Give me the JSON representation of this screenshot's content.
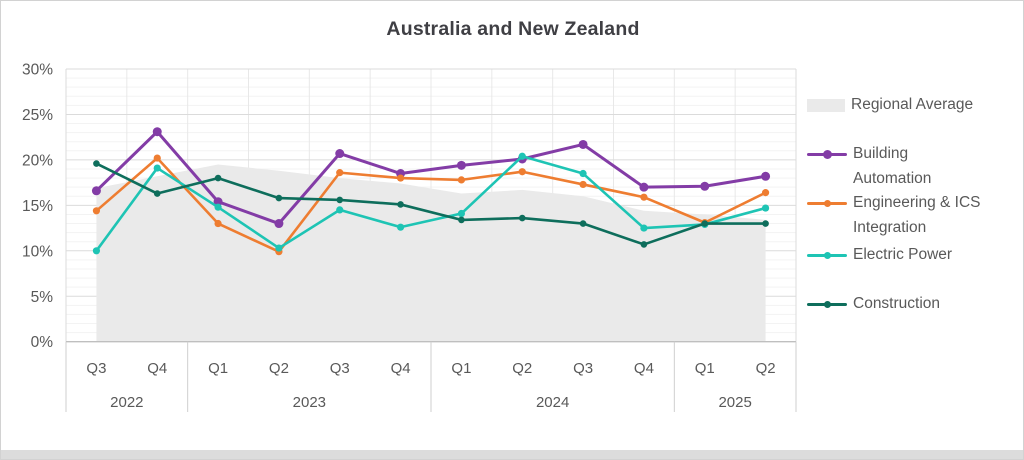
{
  "title": "Australia and New Zealand",
  "colors": {
    "regional_average": "#eaeaea",
    "building_automation": "#833ca6",
    "engineering_ics": "#ee7d31",
    "electric_power": "#1ec4b4",
    "construction": "#0e6e5c",
    "axis_text": "#595959",
    "title_text": "#3f3f44",
    "major_grid": "#dbdbdb",
    "minor_grid": "#f3f3f3",
    "vertical_grid": "#e8e8e8",
    "axis_line": "#bfbfbf",
    "separator_line": "#cfcfcf"
  },
  "legend": {
    "items": [
      {
        "lines": [
          "Regional Average"
        ],
        "type": "area",
        "color": "#eaeaea"
      },
      {
        "lines": [
          "Building",
          "Automation"
        ],
        "type": "line",
        "color": "#833ca6",
        "dot": "large"
      },
      {
        "lines": [
          "Engineering & ICS",
          "Integration"
        ],
        "type": "line",
        "color": "#ee7d31",
        "dot": "small"
      },
      {
        "lines": [
          "Electric Power"
        ],
        "type": "line",
        "color": "#1ec4b4",
        "dot": "small"
      },
      {
        "lines": [
          "Construction"
        ],
        "type": "line",
        "color": "#0e6e5c",
        "dot": "small"
      }
    ]
  },
  "chart_data": {
    "type": "line",
    "title": "Australia and New Zealand",
    "categories": [
      "Q3",
      "Q4",
      "Q1",
      "Q2",
      "Q3",
      "Q4",
      "Q1",
      "Q2",
      "Q3",
      "Q4",
      "Q1",
      "Q2"
    ],
    "year_groups": [
      {
        "year": "2022",
        "quarters": 2
      },
      {
        "year": "2023",
        "quarters": 4
      },
      {
        "year": "2024",
        "quarters": 4
      },
      {
        "year": "2025",
        "quarters": 2
      }
    ],
    "y_axis": {
      "min": 0,
      "max": 30,
      "major_step": 5,
      "minor_step": 1,
      "tick_values": [
        30,
        25,
        20,
        15,
        10,
        5,
        0
      ],
      "tick_labels": [
        "30%",
        "25%",
        "20%",
        "15%",
        "10%",
        "5%",
        "0%"
      ],
      "unit": "%"
    },
    "area_series": {
      "name": "Regional Average",
      "color": "#eaeaea",
      "values": [
        16.9,
        18.2,
        19.5,
        18.8,
        18.0,
        17.4,
        16.3,
        16.7,
        16.0,
        14.4,
        14.0,
        13.4
      ]
    },
    "series": [
      {
        "name": "Building Automation",
        "color": "#833ca6",
        "values": [
          16.6,
          23.1,
          15.4,
          13.0,
          20.7,
          18.5,
          19.4,
          20.1,
          21.7,
          17.0,
          17.1,
          18.2
        ]
      },
      {
        "name": "Engineering & ICS Integration",
        "color": "#ee7d31",
        "values": [
          14.4,
          20.2,
          13.0,
          9.9,
          18.6,
          18.0,
          17.8,
          18.7,
          17.3,
          15.9,
          13.1,
          16.4
        ]
      },
      {
        "name": "Electric Power",
        "color": "#1ec4b4",
        "values": [
          10.0,
          19.1,
          14.8,
          10.3,
          14.5,
          12.6,
          14.1,
          20.4,
          18.5,
          12.5,
          12.9,
          14.7
        ]
      },
      {
        "name": "Construction",
        "color": "#0e6e5c",
        "values": [
          19.6,
          16.3,
          18.0,
          15.8,
          15.6,
          15.1,
          13.4,
          13.6,
          13.0,
          10.7,
          13.0,
          13.0
        ]
      }
    ],
    "legend_position": "right",
    "grid": true
  }
}
